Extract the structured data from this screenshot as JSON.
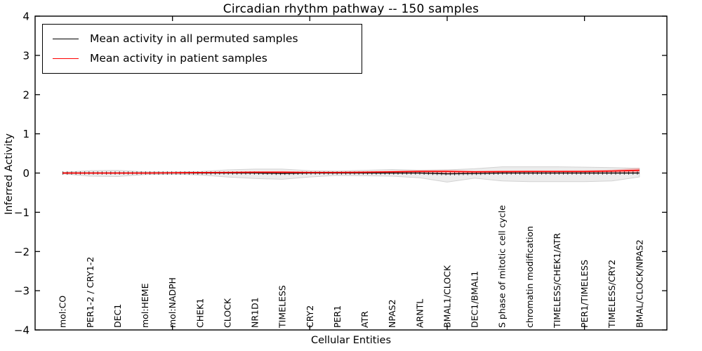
{
  "figure": {
    "title": "Circadian rhythm pathway -- 150 samples",
    "xlabel": "Cellular Entities",
    "ylabel": "Inferred Activity"
  },
  "legend": {
    "items": [
      {
        "label": "Mean activity in all permuted samples",
        "color": "#000000"
      },
      {
        "label": "Mean activity in patient samples",
        "color": "#ff0000"
      }
    ]
  },
  "chart_data": {
    "type": "line",
    "title": "Circadian rhythm pathway -- 150 samples",
    "xlabel": "Cellular Entities",
    "ylabel": "Inferred Activity",
    "ylim": [
      -4,
      4
    ],
    "xlim": [
      -1,
      22
    ],
    "yticks": [
      -4,
      -3,
      -2,
      -1,
      0,
      1,
      2,
      3,
      4
    ],
    "xtick_positions": [
      4,
      9,
      14,
      19
    ],
    "grid": false,
    "legend_position": "upper left",
    "categories": [
      "mol:CO",
      "PER1-2 / CRY1-2",
      "DEC1",
      "mol:HEME",
      "mol:NADPH",
      "CHEK1",
      "CLOCK",
      "NR1D1",
      "TIMELESS",
      "CRY2",
      "PER1",
      "ATR",
      "NPAS2",
      "ARNTL",
      "BMAL1/CLOCK",
      "DEC1/BMAL1",
      "S phase of mitotic cell cycle",
      "chromatin modification",
      "TIMELESS/CHEK1/ATR",
      "PER1/TIMELESS",
      "TIMELESS/CRY2",
      "BMAL/CLOCK/NPAS2"
    ],
    "series": [
      {
        "name": "Mean activity in all permuted samples",
        "color": "#000000",
        "values": [
          0,
          0,
          0,
          0,
          0,
          0,
          0,
          0,
          -0.01,
          0,
          0,
          0,
          0,
          0,
          -0.02,
          -0.01,
          0,
          0,
          0,
          0,
          0,
          0
        ]
      },
      {
        "name": "Mean activity in patient samples",
        "color": "#ff0000",
        "values": [
          0,
          0,
          0,
          0,
          0.005,
          0.01,
          0.015,
          0.02,
          0.02,
          0.015,
          0.015,
          0.02,
          0.03,
          0.04,
          0.04,
          0.03,
          0.035,
          0.04,
          0.04,
          0.04,
          0.05,
          0.07
        ]
      }
    ],
    "bands": [
      {
        "name": "permuted-samples-range",
        "fill": "#e9e9e9",
        "edge": "#d2d2d2",
        "opacity": 0.85,
        "upper": [
          0.02,
          0.06,
          0.07,
          0.03,
          0.03,
          0.04,
          0.08,
          0.1,
          0.1,
          0.06,
          0.05,
          0.07,
          0.09,
          0.07,
          0.08,
          0.11,
          0.16,
          0.16,
          0.16,
          0.15,
          0.14,
          0.12
        ],
        "lower": [
          -0.02,
          -0.08,
          -0.09,
          -0.04,
          -0.03,
          -0.05,
          -0.1,
          -0.14,
          -0.16,
          -0.1,
          -0.06,
          -0.07,
          -0.08,
          -0.12,
          -0.23,
          -0.13,
          -0.2,
          -0.22,
          -0.22,
          -0.22,
          -0.2,
          -0.1
        ]
      },
      {
        "name": "patient-samples-range",
        "fill": "#ff0000",
        "edge": "none",
        "opacity": 0.22,
        "upper": [
          0.01,
          0.015,
          0.015,
          0.01,
          0.015,
          0.025,
          0.035,
          0.045,
          0.05,
          0.035,
          0.035,
          0.045,
          0.06,
          0.075,
          0.08,
          0.06,
          0.06,
          0.065,
          0.065,
          0.07,
          0.085,
          0.13
        ],
        "lower": [
          -0.01,
          -0.015,
          -0.015,
          -0.01,
          -0.005,
          -0.005,
          -0.005,
          -0.005,
          -0.015,
          -0.005,
          -0.005,
          -0.005,
          0,
          0.005,
          -0.03,
          0,
          0.01,
          0.015,
          0.015,
          0.01,
          0.015,
          0
        ]
      }
    ]
  }
}
